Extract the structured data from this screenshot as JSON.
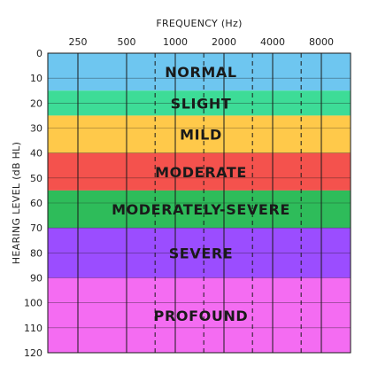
{
  "chart_data": {
    "type": "table",
    "title": "",
    "xlabel": "FREQUENCY (Hz)",
    "ylabel": "HEARING LEVEL (dB HL)",
    "x_scale": "log",
    "x_ticks": [
      "250",
      "500",
      "1000",
      "2000",
      "4000",
      "8000"
    ],
    "x_tick_values": [
      250,
      500,
      1000,
      2000,
      4000,
      8000
    ],
    "x_intermediate_dashed": [
      750,
      1500,
      3000,
      6000
    ],
    "y_ticks": [
      "0",
      "10",
      "20",
      "30",
      "40",
      "50",
      "60",
      "70",
      "80",
      "90",
      "100",
      "110",
      "120"
    ],
    "y_tick_values": [
      0,
      10,
      20,
      30,
      40,
      50,
      60,
      70,
      80,
      90,
      100,
      110,
      120
    ],
    "ylim": [
      0,
      120
    ],
    "y_inverted": true,
    "grid": true,
    "bands": [
      {
        "label": "NORMAL",
        "from": 0,
        "to": 15,
        "color": "#6ec6f0"
      },
      {
        "label": "SLIGHT",
        "from": 15,
        "to": 25,
        "color": "#3ddc97"
      },
      {
        "label": "MILD",
        "from": 25,
        "to": 40,
        "color": "#ffc94a"
      },
      {
        "label": "MODERATE",
        "from": 40,
        "to": 55,
        "color": "#f4524d"
      },
      {
        "label": "MODERATELY-SEVERE",
        "from": 55,
        "to": 70,
        "color": "#2ebc5a"
      },
      {
        "label": "SEVERE",
        "from": 70,
        "to": 90,
        "color": "#9b4dff"
      },
      {
        "label": "PROFOUND",
        "from": 90,
        "to": 120,
        "color": "#f46cf2"
      }
    ]
  }
}
